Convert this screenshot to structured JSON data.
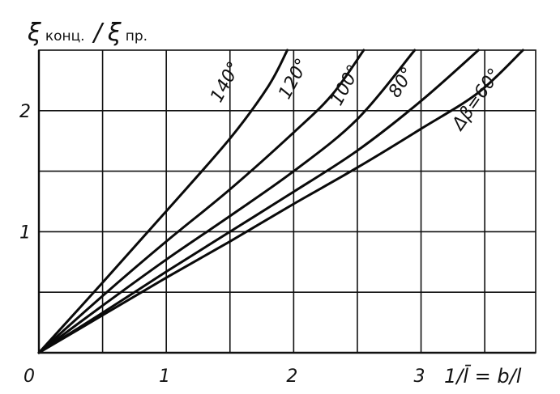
{
  "chart_data": {
    "type": "line",
    "ylabel_main": "ξ",
    "ylabel_sub1": "конц.",
    "ylabel_slash": "/",
    "ylabel_main2": "ξ",
    "ylabel_sub2": "пр.",
    "xlabel": "1/l̄ = b/l",
    "xlim": [
      0,
      3.9
    ],
    "ylim": [
      0,
      2.5
    ],
    "grid": true,
    "x_ticks": [
      {
        "value": 0,
        "label": "0"
      },
      {
        "value": 1,
        "label": "1"
      },
      {
        "value": 2,
        "label": "2"
      },
      {
        "value": 3,
        "label": "3"
      }
    ],
    "y_ticks": [
      {
        "value": 1,
        "label": "1"
      },
      {
        "value": 2,
        "label": "2"
      }
    ],
    "x_gridlines": [
      0.5,
      1,
      1.5,
      2,
      2.5,
      3,
      3.5
    ],
    "y_gridlines": [
      0.5,
      1,
      1.5,
      2
    ],
    "series": [
      {
        "name": "140°",
        "x": [
          0,
          0.5,
          1.0,
          1.5,
          1.8,
          1.95
        ],
        "y": [
          0,
          0.58,
          1.17,
          1.77,
          2.2,
          2.5
        ]
      },
      {
        "name": "120°",
        "x": [
          0,
          0.5,
          1.0,
          1.5,
          2.0,
          2.3,
          2.55
        ],
        "y": [
          0,
          0.47,
          0.92,
          1.35,
          1.82,
          2.13,
          2.5
        ]
      },
      {
        "name": "100°",
        "x": [
          0,
          0.5,
          1.0,
          1.5,
          2.0,
          2.5,
          2.95
        ],
        "y": [
          0,
          0.39,
          0.77,
          1.13,
          1.5,
          1.93,
          2.5
        ]
      },
      {
        "name": "80°",
        "x": [
          0,
          0.5,
          1.0,
          1.5,
          2.0,
          2.5,
          3.0,
          3.45
        ],
        "y": [
          0,
          0.33,
          0.67,
          1.0,
          1.33,
          1.67,
          2.08,
          2.5
        ]
      },
      {
        "name": "Δβ=60°",
        "x": [
          0,
          0.5,
          1.0,
          1.5,
          2.0,
          2.5,
          3.0,
          3.45,
          3.8
        ],
        "y": [
          0,
          0.31,
          0.62,
          0.92,
          1.23,
          1.53,
          1.85,
          2.15,
          2.5
        ]
      }
    ]
  }
}
